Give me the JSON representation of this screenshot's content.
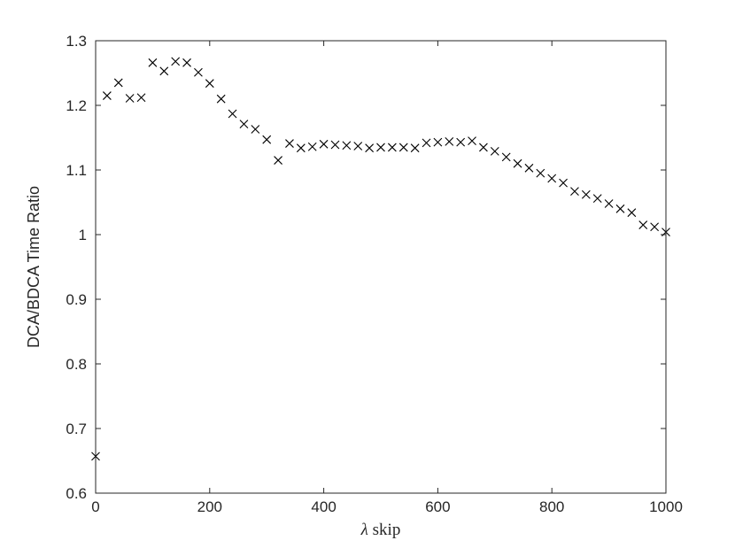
{
  "chart_data": {
    "type": "scatter",
    "marker": "x",
    "xlabel_symbol": "λ",
    "xlabel_text": " skip",
    "ylabel": "DCA/BDCA Time Ratio",
    "xlim": [
      0,
      1000
    ],
    "ylim": [
      0.6,
      1.3
    ],
    "xticks": [
      0,
      200,
      400,
      600,
      800,
      1000
    ],
    "yticks": [
      0.6,
      0.7,
      0.8,
      0.9,
      1.0,
      1.1,
      1.2,
      1.3
    ],
    "xtick_labels": [
      "0",
      "200",
      "400",
      "600",
      "800",
      "1000"
    ],
    "ytick_labels": [
      "0.6",
      "0.7",
      "0.8",
      "0.9",
      "1",
      "1.1",
      "1.2",
      "1.3"
    ],
    "grid": false,
    "box": true,
    "marker_color": "#000000",
    "x": [
      0,
      20,
      40,
      60,
      80,
      100,
      120,
      140,
      160,
      180,
      200,
      220,
      240,
      260,
      280,
      300,
      320,
      340,
      360,
      380,
      400,
      420,
      440,
      460,
      480,
      500,
      520,
      540,
      560,
      580,
      600,
      620,
      640,
      660,
      680,
      700,
      720,
      740,
      760,
      780,
      800,
      820,
      840,
      860,
      880,
      900,
      920,
      940,
      960,
      980,
      1000
    ],
    "y": [
      0.657,
      1.215,
      1.235,
      1.211,
      1.212,
      1.266,
      1.253,
      1.268,
      1.266,
      1.251,
      1.234,
      1.21,
      1.187,
      1.171,
      1.163,
      1.147,
      1.115,
      1.141,
      1.134,
      1.136,
      1.14,
      1.139,
      1.138,
      1.137,
      1.134,
      1.135,
      1.135,
      1.135,
      1.134,
      1.142,
      1.143,
      1.144,
      1.143,
      1.145,
      1.135,
      1.129,
      1.12,
      1.11,
      1.103,
      1.095,
      1.087,
      1.08,
      1.067,
      1.062,
      1.056,
      1.048,
      1.04,
      1.034,
      1.015,
      1.012,
      1.004
    ]
  }
}
